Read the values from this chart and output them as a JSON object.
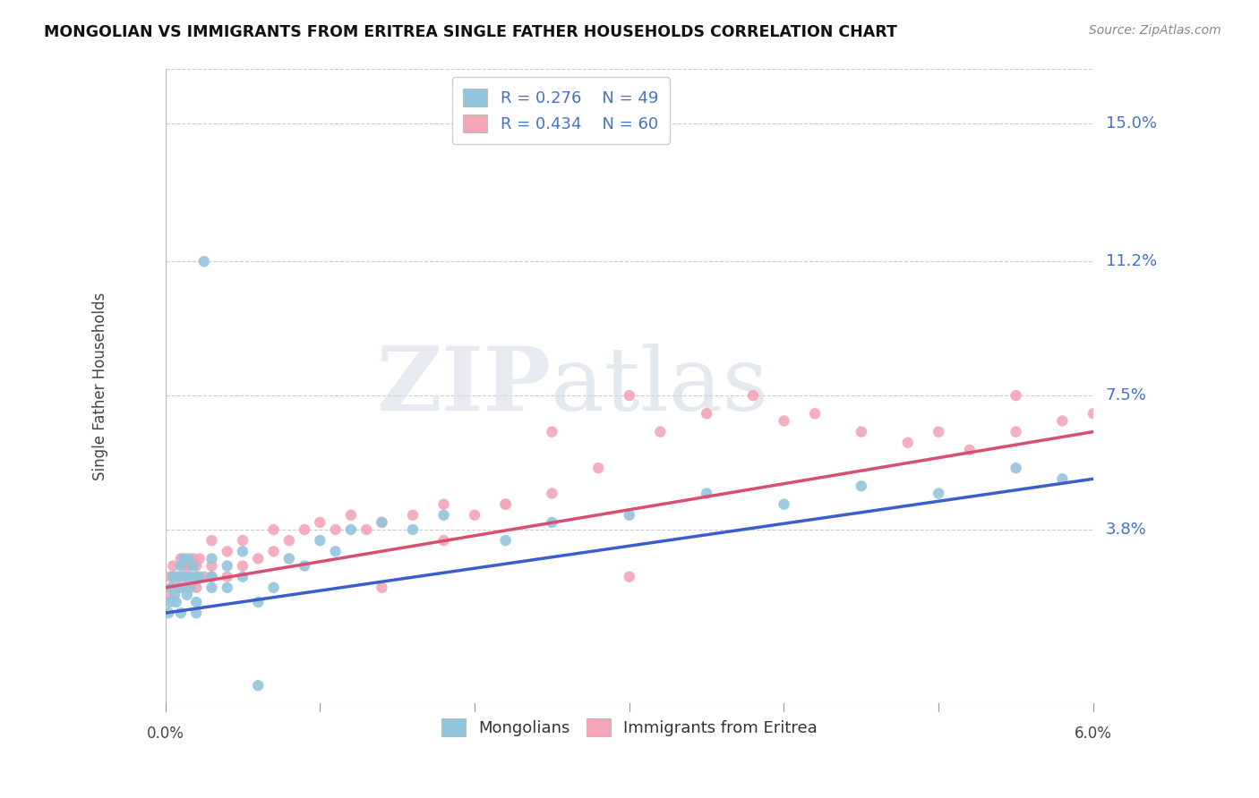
{
  "title": "MONGOLIAN VS IMMIGRANTS FROM ERITREA SINGLE FATHER HOUSEHOLDS CORRELATION CHART",
  "source": "Source: ZipAtlas.com",
  "ylabel": "Single Father Households",
  "ytick_labels": [
    "15.0%",
    "11.2%",
    "7.5%",
    "3.8%"
  ],
  "ytick_values": [
    0.15,
    0.112,
    0.075,
    0.038
  ],
  "xlim": [
    0.0,
    0.06
  ],
  "ylim": [
    -0.01,
    0.165
  ],
  "mongolian_color": "#92c5de",
  "eritrea_color": "#f4a5b8",
  "mongolian_line_color": "#3a5fcd",
  "eritrea_line_color": "#d94f70",
  "legend_R_mongolian": "R = 0.276",
  "legend_N_mongolian": "N = 49",
  "legend_R_eritrea": "R = 0.434",
  "legend_N_eritrea": "N = 60",
  "watermark": "ZIPatlas",
  "mongolian_x": [
    0.0002,
    0.0003,
    0.0004,
    0.0005,
    0.0006,
    0.0007,
    0.0008,
    0.001,
    0.001,
    0.001,
    0.0012,
    0.0013,
    0.0014,
    0.0015,
    0.0015,
    0.0016,
    0.0018,
    0.002,
    0.002,
    0.002,
    0.0022,
    0.0025,
    0.003,
    0.003,
    0.003,
    0.004,
    0.004,
    0.005,
    0.005,
    0.006,
    0.007,
    0.008,
    0.009,
    0.01,
    0.011,
    0.012,
    0.014,
    0.016,
    0.018,
    0.022,
    0.025,
    0.03,
    0.035,
    0.04,
    0.045,
    0.05,
    0.055,
    0.058,
    0.006
  ],
  "mongolian_y": [
    0.015,
    0.018,
    0.022,
    0.025,
    0.02,
    0.018,
    0.025,
    0.028,
    0.022,
    0.015,
    0.03,
    0.025,
    0.02,
    0.025,
    0.03,
    0.022,
    0.028,
    0.025,
    0.015,
    0.018,
    0.025,
    0.112,
    0.03,
    0.025,
    0.022,
    0.028,
    0.022,
    0.032,
    0.025,
    0.018,
    0.022,
    0.03,
    0.028,
    0.035,
    0.032,
    0.038,
    0.04,
    0.038,
    0.042,
    0.035,
    0.04,
    0.042,
    0.048,
    0.045,
    0.05,
    0.048,
    0.055,
    0.052,
    -0.005
  ],
  "eritrea_x": [
    0.0002,
    0.0003,
    0.0004,
    0.0005,
    0.0006,
    0.0008,
    0.001,
    0.001,
    0.0012,
    0.0013,
    0.0014,
    0.0015,
    0.0016,
    0.0018,
    0.002,
    0.002,
    0.0022,
    0.0025,
    0.003,
    0.003,
    0.003,
    0.004,
    0.004,
    0.005,
    0.005,
    0.006,
    0.007,
    0.007,
    0.008,
    0.009,
    0.01,
    0.011,
    0.012,
    0.013,
    0.014,
    0.016,
    0.018,
    0.02,
    0.022,
    0.025,
    0.025,
    0.028,
    0.03,
    0.032,
    0.035,
    0.038,
    0.04,
    0.042,
    0.045,
    0.048,
    0.05,
    0.052,
    0.055,
    0.058,
    0.06,
    0.014,
    0.018,
    0.022,
    0.03,
    0.055
  ],
  "eritrea_y": [
    0.02,
    0.025,
    0.022,
    0.028,
    0.025,
    0.022,
    0.03,
    0.025,
    0.028,
    0.025,
    0.022,
    0.028,
    0.025,
    0.03,
    0.028,
    0.022,
    0.03,
    0.025,
    0.035,
    0.028,
    0.025,
    0.032,
    0.025,
    0.035,
    0.028,
    0.03,
    0.038,
    0.032,
    0.035,
    0.038,
    0.04,
    0.038,
    0.042,
    0.038,
    0.04,
    0.042,
    0.045,
    0.042,
    0.045,
    0.048,
    0.065,
    0.055,
    0.075,
    0.065,
    0.07,
    0.075,
    0.068,
    0.07,
    0.065,
    0.062,
    0.065,
    0.06,
    0.065,
    0.068,
    0.07,
    0.022,
    0.035,
    0.045,
    0.025,
    0.075
  ]
}
